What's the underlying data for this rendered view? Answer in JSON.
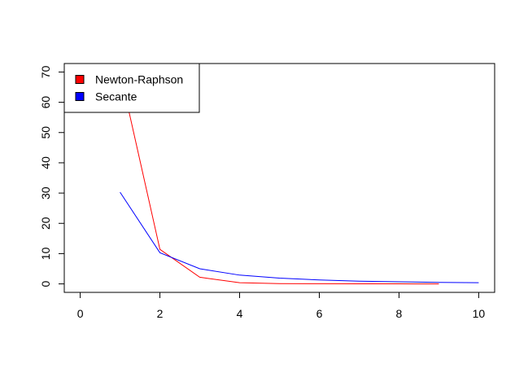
{
  "chart_data": {
    "type": "line",
    "title": "",
    "xlabel": "",
    "ylabel": "",
    "xlim": [
      -0.4,
      10.4
    ],
    "ylim": [
      -2.8,
      72.8
    ],
    "x_ticks": [
      0,
      2,
      4,
      6,
      8,
      10
    ],
    "y_ticks": [
      0,
      10,
      20,
      30,
      40,
      50,
      60,
      70
    ],
    "grid": false,
    "legend": {
      "position": "top-left"
    },
    "series": [
      {
        "name": "Newton-Raphson",
        "color": "#ff0000",
        "x": [
          1,
          2,
          3,
          4,
          5,
          6,
          7,
          8,
          9
        ],
        "y": [
          70,
          11.4,
          2.2,
          0.4,
          0.1,
          0.05,
          0.02,
          0.01,
          0.0
        ]
      },
      {
        "name": "Secante",
        "color": "#0000ff",
        "x": [
          1,
          2,
          3,
          4,
          5,
          6,
          7,
          8,
          9,
          10
        ],
        "y": [
          30.3,
          10.3,
          5.0,
          2.9,
          1.9,
          1.3,
          0.9,
          0.7,
          0.5,
          0.4
        ]
      }
    ]
  }
}
